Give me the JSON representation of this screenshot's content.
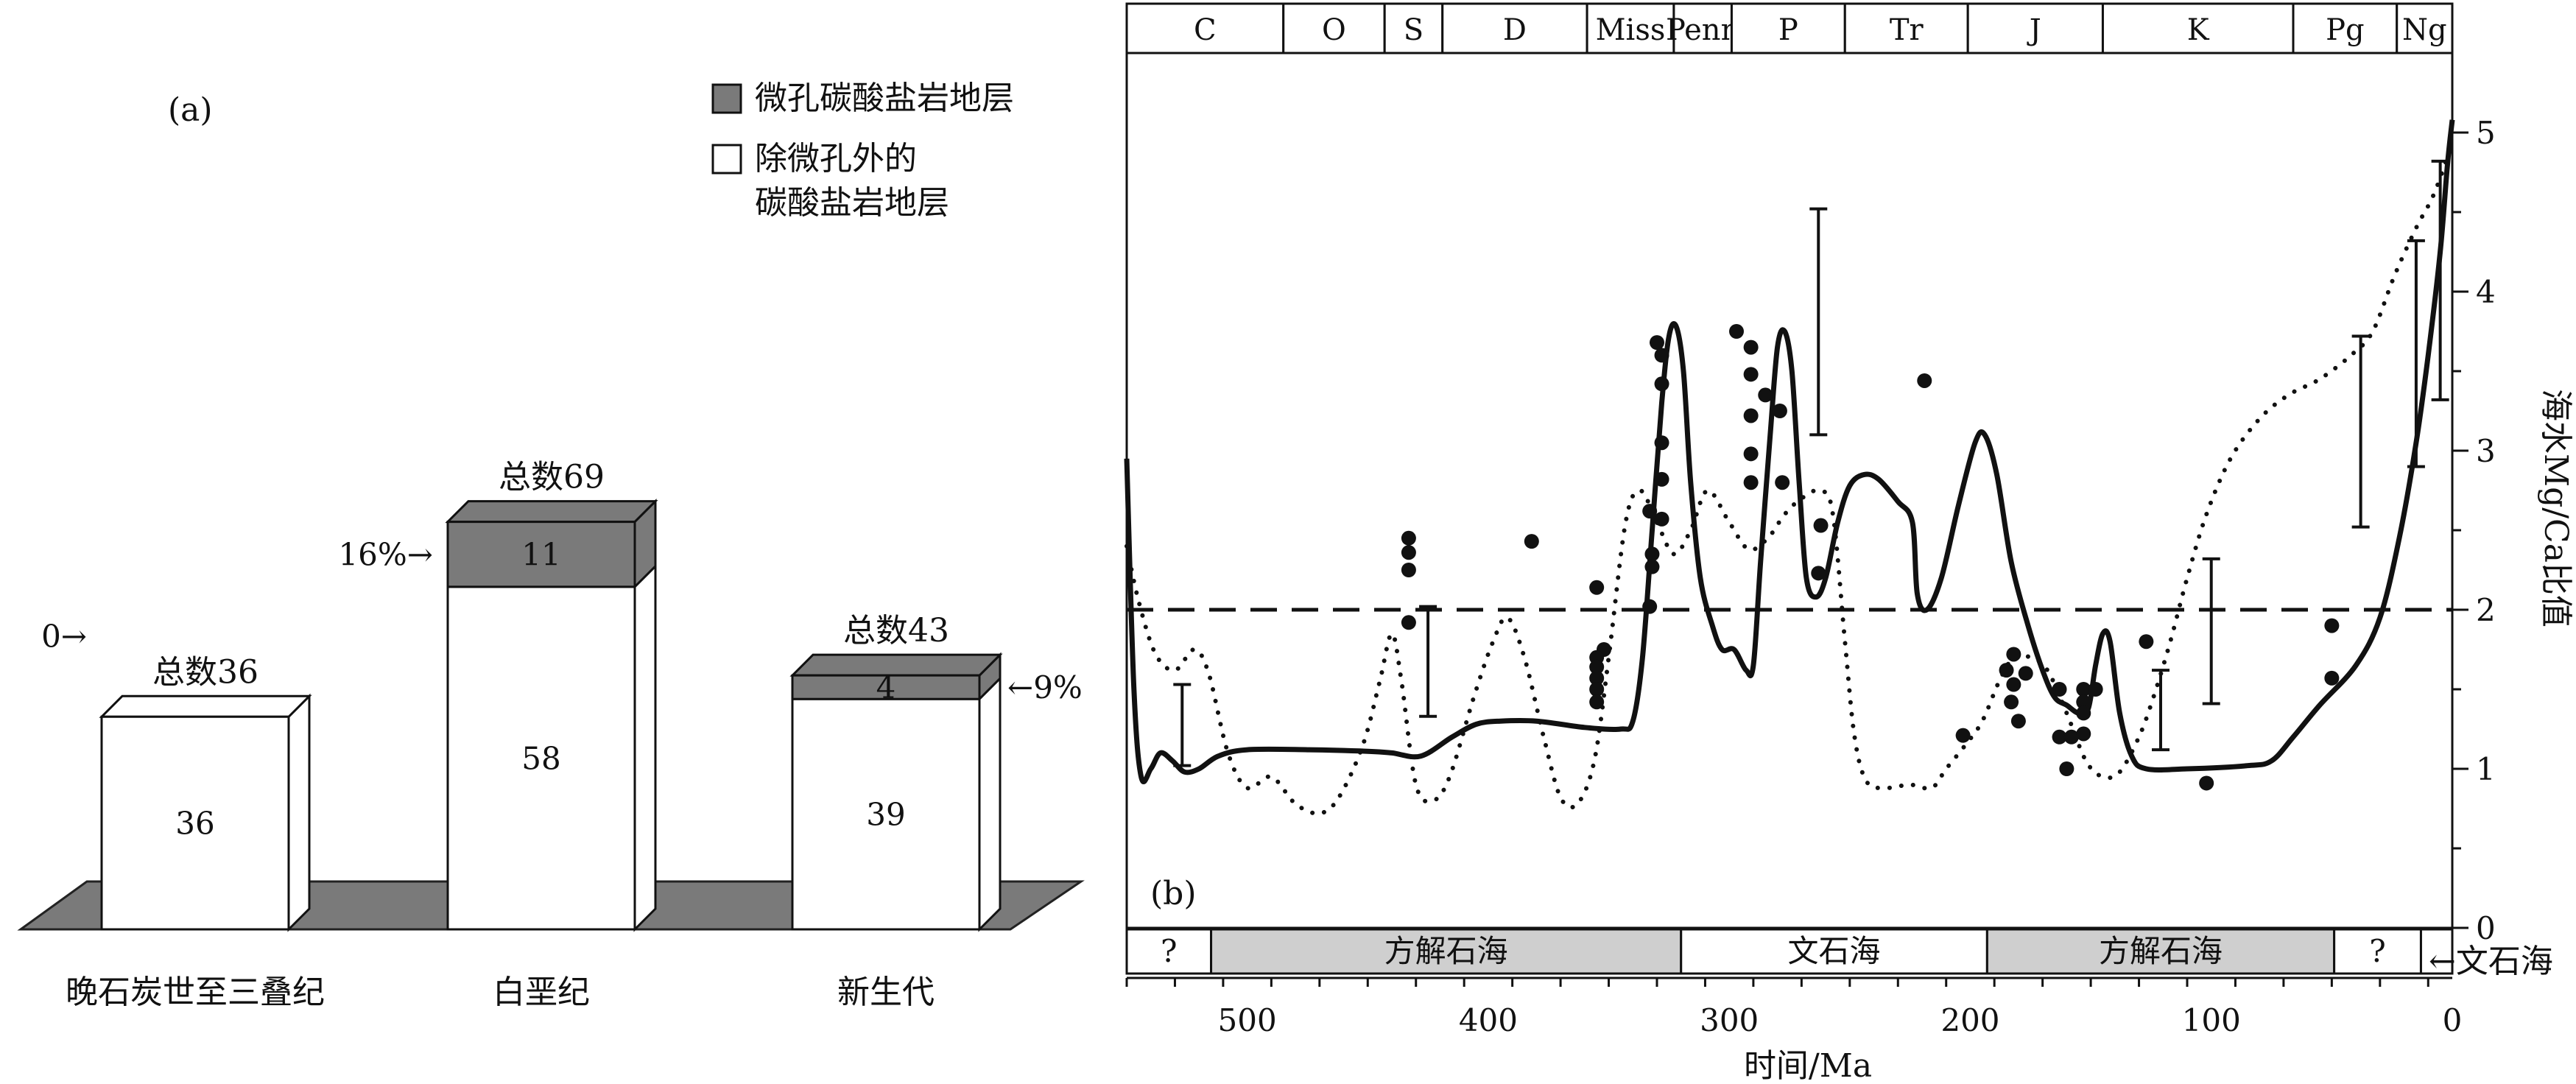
{
  "chart_data": [
    {
      "type": "bar",
      "panel_label": "(a)",
      "categories": [
        "晚石炭世至三叠纪",
        "白垩纪",
        "新生代"
      ],
      "series": [
        {
          "name": "微孔碳酸盐岩地层",
          "values": [
            0,
            11,
            4
          ],
          "color": "#7a7a7a"
        },
        {
          "name": "除微孔外的碳酸盐岩地层",
          "values": [
            36,
            58,
            39
          ],
          "color": "#ffffff"
        }
      ],
      "series_legend_lines": [
        [
          "微孔碳酸盐岩地层"
        ],
        [
          "除微孔外的",
          "碳酸盐岩地层"
        ]
      ],
      "totals": [
        "总数36",
        "总数69",
        "总数43"
      ],
      "percent_labels": [
        "0→",
        "16%→",
        "←9%"
      ],
      "floor_color": "#7a7a7a"
    },
    {
      "type": "line",
      "panel_label": "(b)",
      "xlabel": "时间/Ma",
      "ylabel": "海水Mg/Ca比值",
      "xlim": [
        550,
        0
      ],
      "ylim": [
        0,
        5.5
      ],
      "x_ticks": [
        500,
        400,
        300,
        200,
        100,
        0
      ],
      "y_ticks": [
        0,
        1,
        2,
        3,
        4,
        5
      ],
      "periods": [
        {
          "name": "C",
          "start": 550,
          "end": 485
        },
        {
          "name": "O",
          "start": 485,
          "end": 443
        },
        {
          "name": "S",
          "start": 443,
          "end": 419
        },
        {
          "name": "D",
          "start": 419,
          "end": 359
        },
        {
          "name": "Miss",
          "start": 359,
          "end": 323
        },
        {
          "name": "Penn",
          "start": 323,
          "end": 299
        },
        {
          "name": "P",
          "start": 299,
          "end": 252
        },
        {
          "name": "Tr",
          "start": 252,
          "end": 201
        },
        {
          "name": "J",
          "start": 201,
          "end": 145
        },
        {
          "name": "K",
          "start": 145,
          "end": 66
        },
        {
          "name": "Pg",
          "start": 66,
          "end": 23
        },
        {
          "name": "Ng",
          "start": 23,
          "end": 0
        }
      ],
      "sea_bands": [
        {
          "label": "?",
          "start": 550,
          "end": 515,
          "shade": false
        },
        {
          "label": "方解石海",
          "start": 515,
          "end": 320,
          "shade": true
        },
        {
          "label": "文石海",
          "start": 320,
          "end": 193,
          "shade": false
        },
        {
          "label": "方解石海",
          "start": 193,
          "end": 49,
          "shade": true
        },
        {
          "label": "?",
          "start": 49,
          "end": 13,
          "shade": false
        },
        {
          "label": "",
          "start": 13,
          "end": 0,
          "shade": false
        }
      ],
      "sea_right_label": "←文石海",
      "threshold": 2,
      "solid_curve": [
        [
          550,
          2.95
        ],
        [
          547,
          1.5
        ],
        [
          544,
          0.95
        ],
        [
          540,
          1.0
        ],
        [
          536,
          1.1
        ],
        [
          531,
          1.05
        ],
        [
          526,
          0.98
        ],
        [
          520,
          1.0
        ],
        [
          512,
          1.08
        ],
        [
          500,
          1.12
        ],
        [
          475,
          1.12
        ],
        [
          450,
          1.11
        ],
        [
          440,
          1.1
        ],
        [
          428,
          1.08
        ],
        [
          415,
          1.2
        ],
        [
          405,
          1.28
        ],
        [
          395,
          1.3
        ],
        [
          380,
          1.3
        ],
        [
          360,
          1.26
        ],
        [
          345,
          1.25
        ],
        [
          340,
          1.3
        ],
        [
          336,
          1.7
        ],
        [
          332,
          2.5
        ],
        [
          328,
          3.3
        ],
        [
          325,
          3.72
        ],
        [
          322,
          3.78
        ],
        [
          319,
          3.5
        ],
        [
          316,
          2.8
        ],
        [
          312,
          2.2
        ],
        [
          307,
          1.9
        ],
        [
          303,
          1.75
        ],
        [
          298,
          1.75
        ],
        [
          293,
          1.62
        ],
        [
          290,
          1.65
        ],
        [
          287,
          2.3
        ],
        [
          283,
          3.1
        ],
        [
          280,
          3.65
        ],
        [
          277,
          3.75
        ],
        [
          274,
          3.5
        ],
        [
          271,
          2.8
        ],
        [
          268,
          2.2
        ],
        [
          264,
          2.08
        ],
        [
          260,
          2.2
        ],
        [
          255,
          2.55
        ],
        [
          250,
          2.78
        ],
        [
          244,
          2.85
        ],
        [
          238,
          2.82
        ],
        [
          230,
          2.68
        ],
        [
          224,
          2.55
        ],
        [
          222,
          2.1
        ],
        [
          218,
          2.0
        ],
        [
          212,
          2.2
        ],
        [
          205,
          2.65
        ],
        [
          198,
          3.05
        ],
        [
          194,
          3.1
        ],
        [
          189,
          2.85
        ],
        [
          183,
          2.3
        ],
        [
          176,
          1.9
        ],
        [
          170,
          1.62
        ],
        [
          165,
          1.45
        ],
        [
          160,
          1.4
        ],
        [
          155,
          1.35
        ],
        [
          151,
          1.38
        ],
        [
          148,
          1.65
        ],
        [
          145,
          1.85
        ],
        [
          142,
          1.8
        ],
        [
          138,
          1.35
        ],
        [
          133,
          1.08
        ],
        [
          127,
          1.0
        ],
        [
          110,
          1.0
        ],
        [
          85,
          1.02
        ],
        [
          75,
          1.05
        ],
        [
          66,
          1.2
        ],
        [
          55,
          1.4
        ],
        [
          40,
          1.65
        ],
        [
          30,
          1.95
        ],
        [
          22,
          2.45
        ],
        [
          15,
          3.05
        ],
        [
          10,
          3.6
        ],
        [
          5,
          4.25
        ],
        [
          2,
          4.8
        ],
        [
          0,
          5.08
        ]
      ],
      "dotted_curve": [
        [
          550,
          2.4
        ],
        [
          545,
          2.05
        ],
        [
          538,
          1.72
        ],
        [
          530,
          1.62
        ],
        [
          522,
          1.75
        ],
        [
          516,
          1.6
        ],
        [
          508,
          1.1
        ],
        [
          500,
          0.88
        ],
        [
          490,
          0.95
        ],
        [
          480,
          0.78
        ],
        [
          470,
          0.72
        ],
        [
          462,
          0.82
        ],
        [
          452,
          1.15
        ],
        [
          445,
          1.55
        ],
        [
          440,
          1.85
        ],
        [
          436,
          1.55
        ],
        [
          430,
          0.9
        ],
        [
          423,
          0.8
        ],
        [
          416,
          0.95
        ],
        [
          406,
          1.45
        ],
        [
          398,
          1.8
        ],
        [
          392,
          1.95
        ],
        [
          385,
          1.7
        ],
        [
          377,
          1.2
        ],
        [
          370,
          0.82
        ],
        [
          363,
          0.78
        ],
        [
          356,
          1.05
        ],
        [
          350,
          1.7
        ],
        [
          343,
          2.55
        ],
        [
          337,
          2.75
        ],
        [
          330,
          2.55
        ],
        [
          323,
          2.35
        ],
        [
          316,
          2.5
        ],
        [
          309,
          2.75
        ],
        [
          300,
          2.55
        ],
        [
          292,
          2.38
        ],
        [
          284,
          2.45
        ],
        [
          277,
          2.6
        ],
        [
          270,
          2.7
        ],
        [
          262,
          2.75
        ],
        [
          257,
          2.6
        ],
        [
          252,
          1.8
        ],
        [
          248,
          1.2
        ],
        [
          243,
          0.92
        ],
        [
          235,
          0.88
        ],
        [
          225,
          0.9
        ],
        [
          216,
          0.88
        ],
        [
          210,
          1.0
        ],
        [
          202,
          1.15
        ],
        [
          195,
          1.3
        ],
        [
          188,
          1.55
        ],
        [
          182,
          1.7
        ],
        [
          175,
          1.7
        ],
        [
          168,
          1.62
        ],
        [
          160,
          1.35
        ],
        [
          152,
          1.05
        ],
        [
          145,
          0.95
        ],
        [
          138,
          0.98
        ],
        [
          130,
          1.2
        ],
        [
          124,
          1.45
        ],
        [
          117,
          1.8
        ],
        [
          110,
          2.2
        ],
        [
          102,
          2.6
        ],
        [
          92,
          2.95
        ],
        [
          80,
          3.2
        ],
        [
          68,
          3.35
        ],
        [
          55,
          3.45
        ],
        [
          42,
          3.6
        ],
        [
          33,
          3.75
        ],
        [
          24,
          4.1
        ],
        [
          15,
          4.4
        ],
        [
          8,
          4.6
        ],
        [
          2,
          4.85
        ],
        [
          0,
          5.0
        ]
      ],
      "points": [
        [
          433,
          2.45
        ],
        [
          433,
          2.36
        ],
        [
          433,
          2.25
        ],
        [
          433,
          1.92
        ],
        [
          382,
          2.43
        ],
        [
          355,
          2.14
        ],
        [
          352,
          1.75
        ],
        [
          355,
          1.7
        ],
        [
          355,
          1.64
        ],
        [
          355,
          1.57
        ],
        [
          355,
          1.5
        ],
        [
          355,
          1.42
        ],
        [
          333,
          2.62
        ],
        [
          332,
          2.35
        ],
        [
          332,
          2.27
        ],
        [
          333,
          2.02
        ],
        [
          330,
          3.68
        ],
        [
          328,
          3.6
        ],
        [
          328,
          3.42
        ],
        [
          328,
          3.05
        ],
        [
          328,
          2.82
        ],
        [
          328,
          2.57
        ],
        [
          297,
          3.75
        ],
        [
          291,
          3.65
        ],
        [
          291,
          3.48
        ],
        [
          285,
          3.35
        ],
        [
          291,
          3.22
        ],
        [
          291,
          2.98
        ],
        [
          291,
          2.8
        ],
        [
          279,
          3.25
        ],
        [
          278,
          2.8
        ],
        [
          262,
          2.53
        ],
        [
          263,
          2.23
        ],
        [
          219,
          3.44
        ],
        [
          203,
          1.21
        ],
        [
          182,
          1.72
        ],
        [
          185,
          1.62
        ],
        [
          177,
          1.6
        ],
        [
          182,
          1.53
        ],
        [
          183,
          1.42
        ],
        [
          180,
          1.3
        ],
        [
          163,
          1.5
        ],
        [
          163,
          1.2
        ],
        [
          158,
          1.2
        ],
        [
          153,
          1.5
        ],
        [
          153,
          1.42
        ],
        [
          153,
          1.35
        ],
        [
          153,
          1.22
        ],
        [
          148,
          1.5
        ],
        [
          160,
          1.0
        ],
        [
          127,
          1.8
        ],
        [
          102,
          0.91
        ],
        [
          50,
          1.9
        ],
        [
          50,
          1.57
        ]
      ],
      "error_bars": [
        [
          527,
          1.02,
          1.53
        ],
        [
          425,
          1.33,
          2.02
        ],
        [
          263,
          3.1,
          4.52
        ],
        [
          121,
          1.12,
          1.62
        ],
        [
          100,
          1.41,
          2.32
        ],
        [
          38,
          2.52,
          3.72
        ],
        [
          15,
          2.9,
          4.32
        ],
        [
          5,
          3.32,
          4.82
        ]
      ]
    }
  ]
}
